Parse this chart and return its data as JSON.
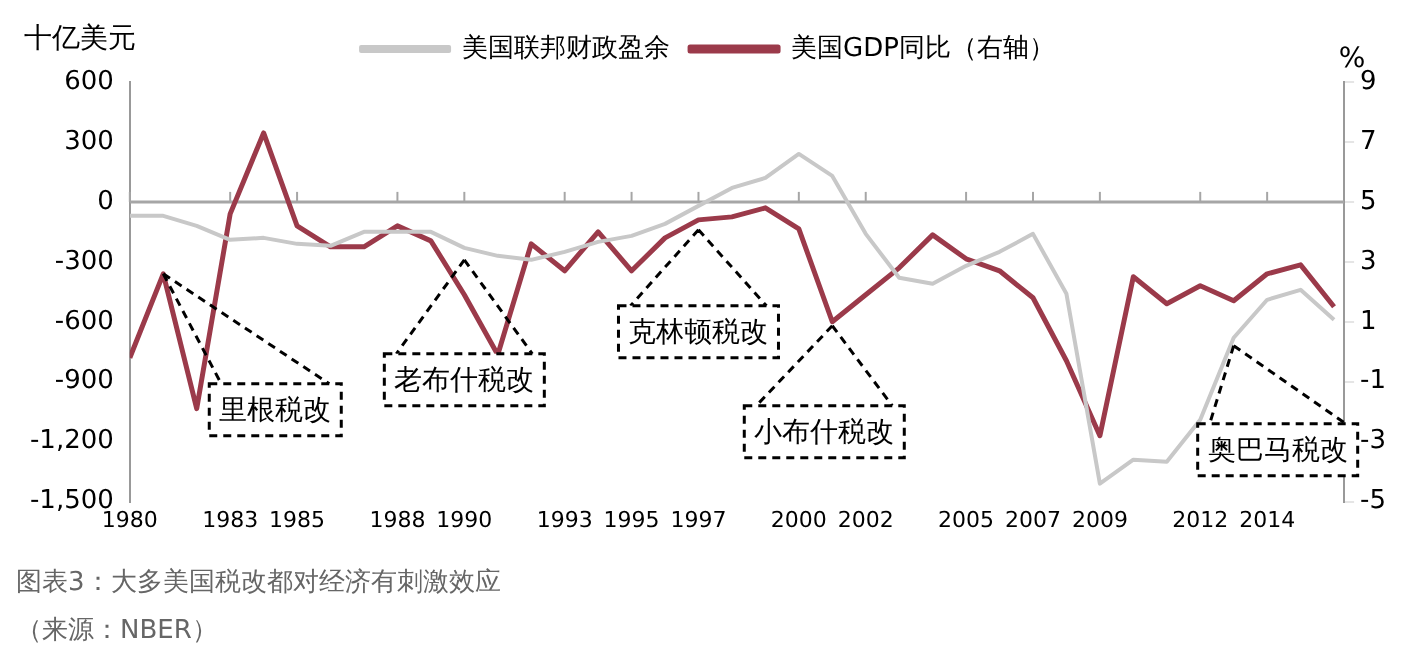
{
  "chart_data": {
    "type": "line",
    "x": [
      1980,
      1981,
      1982,
      1983,
      1984,
      1985,
      1986,
      1987,
      1988,
      1989,
      1990,
      1991,
      1992,
      1993,
      1994,
      1995,
      1996,
      1997,
      1998,
      1999,
      2000,
      2001,
      2002,
      2003,
      2004,
      2005,
      2006,
      2007,
      2008,
      2009,
      2010,
      2011,
      2012,
      2013,
      2014,
      2015,
      2016
    ],
    "series": [
      {
        "name": "美国联邦财政盈余",
        "color": "#c8c8c8",
        "values": [
          -70,
          -70,
          -120,
          -190,
          -180,
          -210,
          -220,
          -150,
          -150,
          -150,
          -230,
          -270,
          -290,
          -250,
          -200,
          -170,
          -110,
          -20,
          70,
          120,
          240,
          130,
          -160,
          -380,
          -410,
          -320,
          -250,
          -160,
          -460,
          -1410,
          -1290,
          -1300,
          -1090,
          -680,
          -490,
          -440,
          -590
        ]
      },
      {
        "name": "美国GDP同比（右轴）",
        "color": "#9b3a4a",
        "axis": "y2",
        "values": [
          -0.2,
          2.6,
          -1.9,
          4.6,
          7.3,
          4.2,
          3.5,
          3.5,
          4.2,
          3.7,
          1.9,
          -0.1,
          3.6,
          2.7,
          4.0,
          2.7,
          3.8,
          4.4,
          4.5,
          4.8,
          4.1,
          1.0,
          1.9,
          2.8,
          3.9,
          3.1,
          2.7,
          1.8,
          -0.3,
          -2.8,
          2.5,
          1.6,
          2.2,
          1.7,
          2.6,
          2.9,
          1.5
        ]
      }
    ],
    "xlim": [
      1980,
      2016.3
    ],
    "xticks": [
      1980,
      1983,
      1985,
      1988,
      1990,
      1993,
      1995,
      1997,
      2000,
      2002,
      2005,
      2007,
      2009,
      2012,
      2014
    ],
    "ylim": [
      -1500,
      600
    ],
    "yticks": [
      {
        "value": -1500,
        "label": "-1,500"
      },
      {
        "value": -1200,
        "label": "-1,200"
      },
      -900,
      -600,
      -300,
      0,
      300,
      600
    ],
    "y2lim": [
      -5,
      9
    ],
    "y2ticks": [
      -5,
      -3,
      -1,
      1,
      3,
      5,
      7,
      9
    ],
    "ylabel": "十亿美元",
    "y2label": "%",
    "ref_lines": [
      {
        "axis": "y",
        "value": 0,
        "color": "#a6a6a6"
      }
    ],
    "grid": false,
    "legend": "top",
    "marker": "none",
    "line_style": "solid",
    "annotations": [
      {
        "text": "里根税改",
        "x": 1981,
        "y": -360
      },
      {
        "text": "老布什税改",
        "x": 1990,
        "y": -290
      },
      {
        "text": "克林顿税改",
        "x": 1997,
        "y": -140
      },
      {
        "text": "小布什税改",
        "x": 2001,
        "y": -620
      },
      {
        "text": "奥巴马税改",
        "x": 2013,
        "y": -720
      },
      "图表3：大多美国税改都对经济有刺激效应",
      "（来源：NBER）"
    ]
  }
}
